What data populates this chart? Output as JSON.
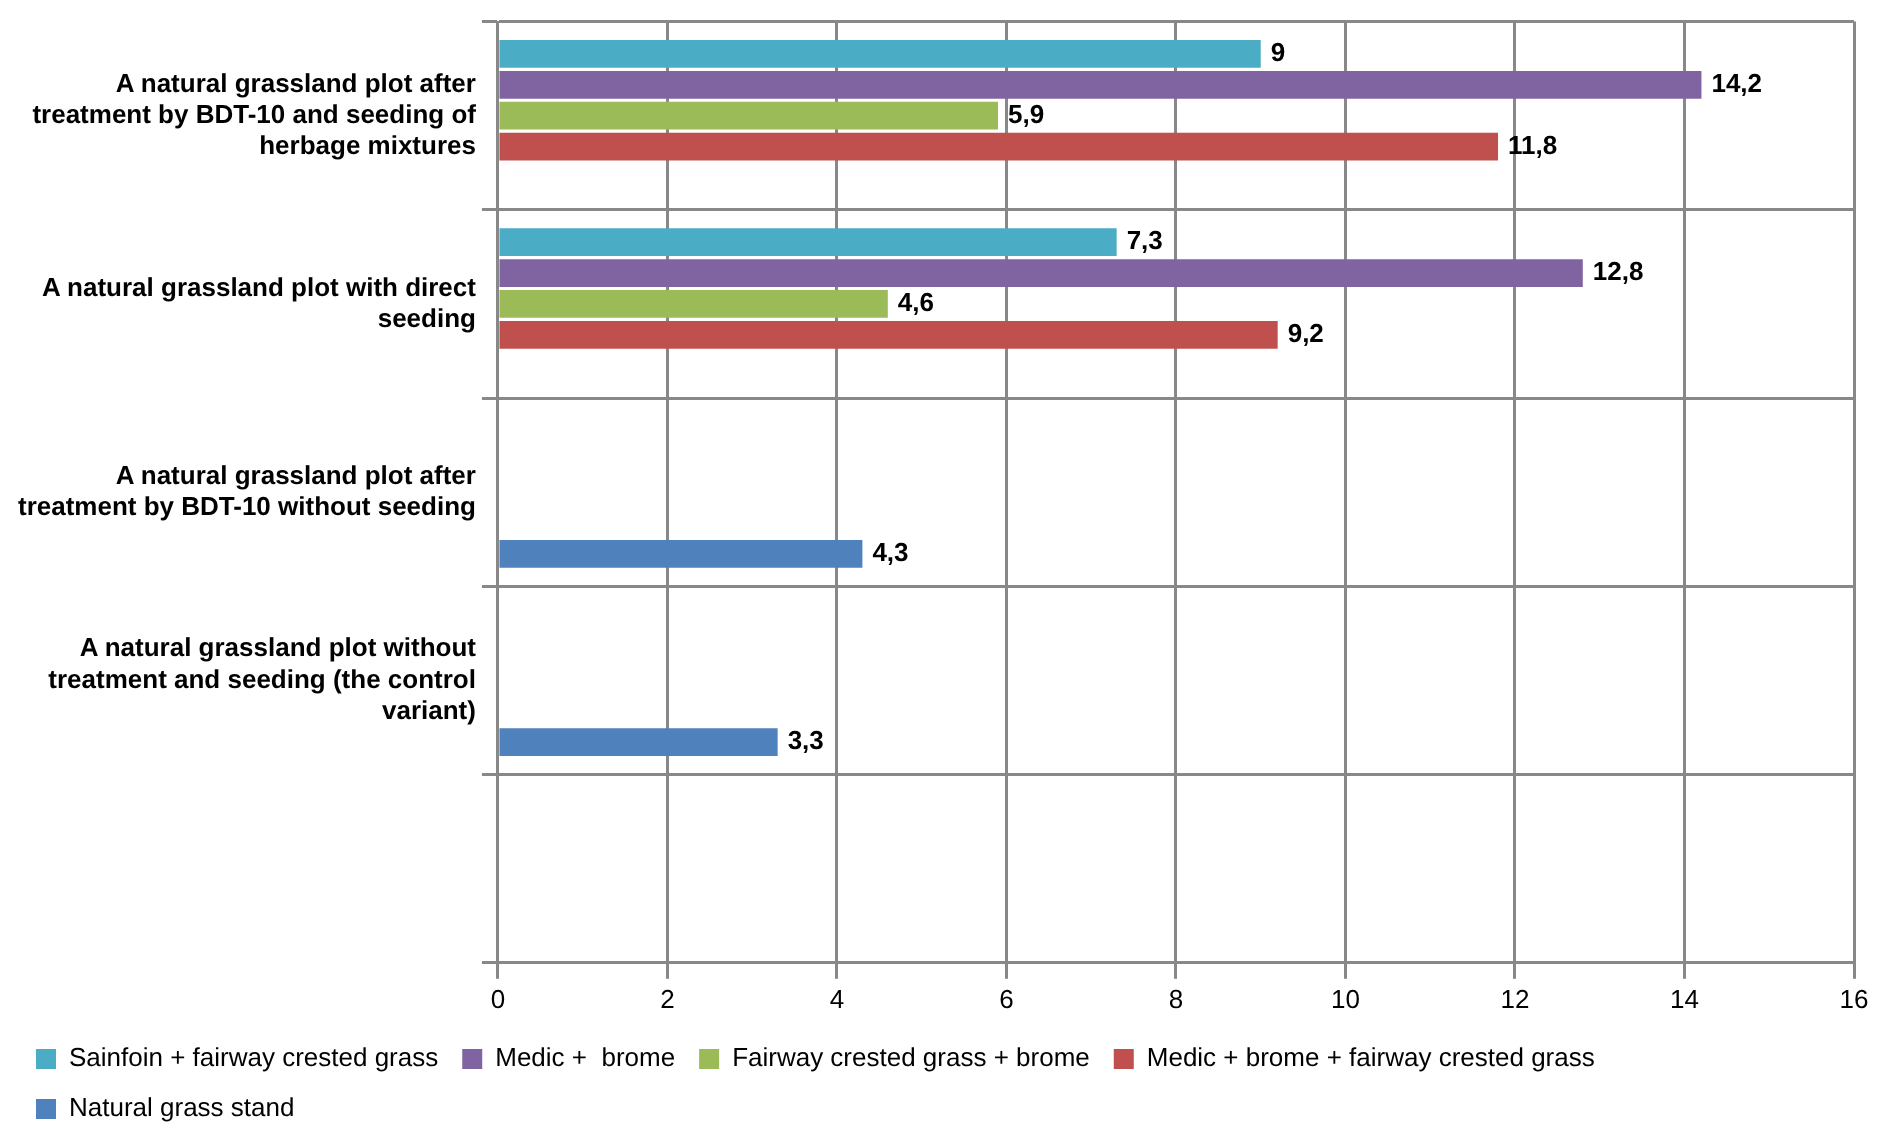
{
  "chart_data": {
    "type": "bar",
    "orientation": "horizontal",
    "categories": [
      "A natural grassland plot after treatment by BDT-10 and seeding of herbage mixtures",
      "A natural grassland plot with direct seeding",
      "A natural grassland plot after treatment by BDT-10 without seeding",
      "A natural grassland plot without treatment and seeding (the control variant)",
      null
    ],
    "series": [
      {
        "name": "Sainfoin + fairway crested grass",
        "color": "#4bacc6",
        "values": [
          9,
          7.3,
          null,
          null,
          null
        ],
        "value_labels": [
          "9",
          "7,3",
          null,
          null,
          null
        ]
      },
      {
        "name": "Medic +  brome",
        "color": "#8064a2",
        "values": [
          14.2,
          12.8,
          null,
          null,
          null
        ],
        "value_labels": [
          "14,2",
          "12,8",
          null,
          null,
          null
        ]
      },
      {
        "name": "Fairway crested grass + brome",
        "color": "#9bbb59",
        "values": [
          5.9,
          4.6,
          null,
          null,
          null
        ],
        "value_labels": [
          "5,9",
          "4,6",
          null,
          null,
          null
        ]
      },
      {
        "name": "Medic + brome + fairway crested grass",
        "color": "#c0504d",
        "values": [
          11.8,
          9.2,
          null,
          null,
          null
        ],
        "value_labels": [
          "11,8",
          "9,2",
          null,
          null,
          null
        ]
      },
      {
        "name": "Natural grass stand",
        "color": "#4f81bd",
        "values": [
          null,
          null,
          4.3,
          3.3,
          null
        ],
        "value_labels": [
          null,
          null,
          "4,3",
          "3,3",
          null
        ]
      }
    ],
    "xlim": [
      0,
      16
    ],
    "xticks": [
      0,
      2,
      4,
      6,
      8,
      10,
      12,
      14,
      16
    ],
    "grid": true,
    "legend": "bottom"
  }
}
